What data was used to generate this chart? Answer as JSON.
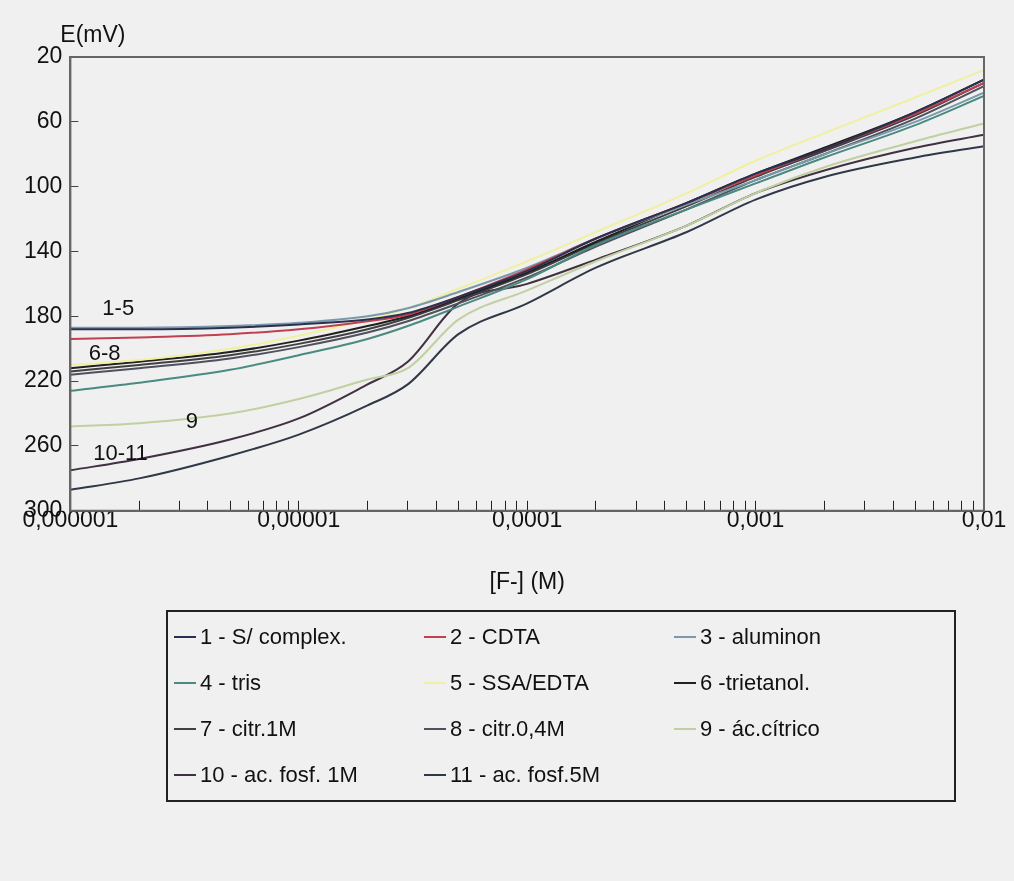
{
  "chart_data": {
    "type": "line",
    "xlabel": "[F-] (M)",
    "ylabel": "E(mV)",
    "log": "x",
    "grid": false,
    "legend": "bottom",
    "marker": "none",
    "line_style": "solid",
    "xlim": [
      1e-06,
      0.01
    ],
    "ylim": [
      300,
      20
    ],
    "xticks": [
      {
        "value": 1e-06,
        "label": "0,000001"
      },
      {
        "value": 2e-06,
        "label": null
      },
      {
        "value": 3e-06,
        "label": null
      },
      {
        "value": 4e-06,
        "label": null
      },
      {
        "value": 5e-06,
        "label": null
      },
      {
        "value": 6e-06,
        "label": null
      },
      {
        "value": 7e-06,
        "label": null
      },
      {
        "value": 8e-06,
        "label": null
      },
      {
        "value": 9e-06,
        "label": null
      },
      {
        "value": 1e-05,
        "label": "0,00001"
      },
      {
        "value": 2e-05,
        "label": null
      },
      {
        "value": 3e-05,
        "label": null
      },
      {
        "value": 4e-05,
        "label": null
      },
      {
        "value": 5e-05,
        "label": null
      },
      {
        "value": 6e-05,
        "label": null
      },
      {
        "value": 7e-05,
        "label": null
      },
      {
        "value": 8e-05,
        "label": null
      },
      {
        "value": 9e-05,
        "label": null
      },
      {
        "value": 0.0001,
        "label": "0,0001"
      },
      {
        "value": 0.0002,
        "label": null
      },
      {
        "value": 0.0003,
        "label": null
      },
      {
        "value": 0.0004,
        "label": null
      },
      {
        "value": 0.0005,
        "label": null
      },
      {
        "value": 0.0006,
        "label": null
      },
      {
        "value": 0.0007,
        "label": null
      },
      {
        "value": 0.0008,
        "label": null
      },
      {
        "value": 0.0009,
        "label": null
      },
      {
        "value": 0.001,
        "label": "0,001"
      },
      {
        "value": 0.002,
        "label": null
      },
      {
        "value": 0.003,
        "label": null
      },
      {
        "value": 0.004,
        "label": null
      },
      {
        "value": 0.005,
        "label": null
      },
      {
        "value": 0.006,
        "label": null
      },
      {
        "value": 0.007,
        "label": null
      },
      {
        "value": 0.008,
        "label": null
      },
      {
        "value": 0.009,
        "label": null
      },
      {
        "value": 0.01,
        "label": "0,01"
      }
    ],
    "yticks": [
      20,
      60,
      100,
      140,
      180,
      220,
      260,
      300
    ],
    "x": [
      1e-06,
      2e-06,
      5e-06,
      1e-05,
      2e-05,
      3e-05,
      5e-05,
      0.0001,
      0.0002,
      0.0005,
      0.001,
      0.002,
      0.005,
      0.01
    ],
    "series": [
      {
        "name": "1 - S/ complex.",
        "color": "#2a3050",
        "values": [
          188,
          188,
          187,
          185,
          182,
          178,
          168,
          152,
          132,
          110,
          92,
          77,
          54,
          34
        ]
      },
      {
        "name": "2 - CDTA",
        "color": "#c04050",
        "values": [
          194,
          193,
          191,
          188,
          183,
          179,
          168,
          151,
          132,
          110,
          93,
          77,
          55,
          36
        ]
      },
      {
        "name": "3 - aluminon",
        "color": "#7a9aaa",
        "values": [
          187,
          187,
          186,
          184,
          180,
          175,
          165,
          150,
          132,
          111,
          96,
          80,
          60,
          42
        ]
      },
      {
        "name": "4 - tris",
        "color": "#4a8a80",
        "values": [
          226,
          221,
          213,
          204,
          194,
          186,
          174,
          157,
          136,
          114,
          98,
          82,
          62,
          44
        ]
      },
      {
        "name": "5 - SSA/EDTA",
        "color": "#f0f0a0",
        "values": [
          210,
          207,
          200,
          192,
          182,
          175,
          163,
          146,
          128,
          104,
          84,
          67,
          45,
          28
        ]
      },
      {
        "name": "6 -trietanol.",
        "color": "#202020",
        "values": [
          212,
          208,
          202,
          195,
          186,
          180,
          169,
          153,
          134,
          110,
          92,
          76,
          54,
          34
        ]
      },
      {
        "name": "7 - citr.1M",
        "color": "#404040",
        "values": [
          214,
          210,
          204,
          197,
          188,
          181,
          170,
          154,
          135,
          112,
          94,
          78,
          56,
          36
        ]
      },
      {
        "name": "8 - citr.0,4M",
        "color": "#505060",
        "values": [
          216,
          212,
          206,
          199,
          190,
          183,
          172,
          156,
          137,
          114,
          96,
          80,
          58,
          38
        ]
      },
      {
        "name": "9 - ác.cítrico",
        "color": "#c0d0a0",
        "values": [
          248,
          246,
          240,
          231,
          219,
          212,
          182,
          164,
          146,
          124,
          104,
          88,
          72,
          61
        ]
      },
      {
        "name": "10 - ac. fosf. 1M",
        "color": "#403040",
        "values": [
          275,
          268,
          256,
          243,
          222,
          208,
          172,
          160,
          145,
          124,
          104,
          90,
          76,
          68
        ]
      },
      {
        "name": "11 - ac. fosf.5M",
        "color": "#303848",
        "values": [
          287,
          280,
          266,
          253,
          235,
          222,
          191,
          172,
          150,
          128,
          108,
          94,
          82,
          75
        ]
      }
    ],
    "annotations": [
      "1-5",
      "6-8",
      {
        "text": "9",
        "x": 3.2e-06,
        "y": 245
      },
      "10-11"
    ]
  }
}
